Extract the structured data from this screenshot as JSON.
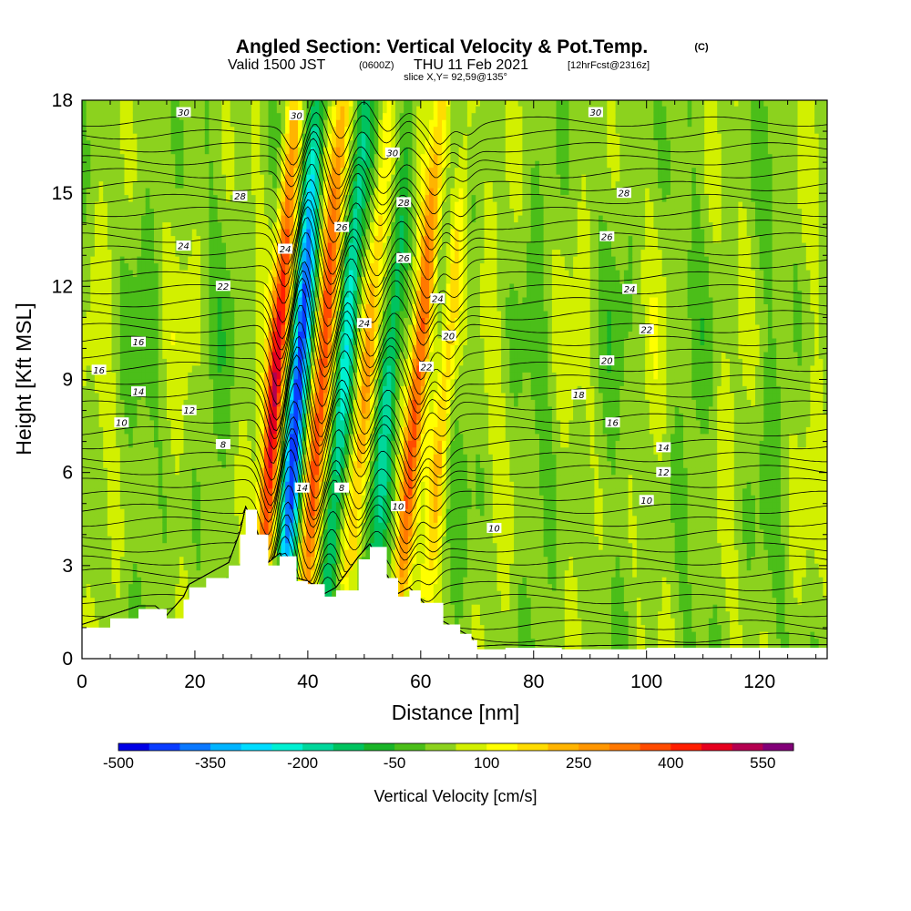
{
  "header": {
    "title": "Angled Section: Vertical Velocity & Pot.Temp.",
    "title_suffix": "(C)",
    "valid_prefix": "Valid 1500 JST",
    "valid_zulu": "(0600Z)",
    "valid_date": "THU 11 Feb 2021",
    "forecast_tag": "[12hrFcst@2316z]",
    "slice": "slice X,Y= 92,59@135°"
  },
  "colorbar": {
    "label": "Vertical Velocity [cm/s]",
    "tick_labels": [
      "-500",
      "-350",
      "-200",
      "-50",
      "100",
      "250",
      "400",
      "550"
    ],
    "tick_values": [
      -500,
      -350,
      -200,
      -50,
      100,
      250,
      400,
      550
    ],
    "levels": [
      -500,
      -450,
      -400,
      -350,
      -300,
      -250,
      -200,
      -150,
      -100,
      -50,
      0,
      50,
      100,
      150,
      200,
      250,
      300,
      350,
      400,
      450,
      500,
      550,
      600
    ],
    "colors": [
      "#0000e6",
      "#0a3cff",
      "#0a78ff",
      "#00b4ff",
      "#00dcff",
      "#00f0d2",
      "#00d79b",
      "#00c35f",
      "#19b428",
      "#4bbe19",
      "#8cd21e",
      "#d2f000",
      "#ffff00",
      "#ffdc00",
      "#ffb400",
      "#ff9600",
      "#ff7800",
      "#ff4b00",
      "#ff1e00",
      "#e6001e",
      "#b40050",
      "#820078"
    ]
  },
  "chart_data": {
    "type": "contour",
    "title": "Angled Section: Vertical Velocity & Pot.Temp. (C)",
    "subtitle": "Valid 1500 JST (0600Z) THU 11 Feb 2021 [12hrFcst@2316z]",
    "xlabel": "Distance [nm]",
    "ylabel": "Height [Kft MSL]",
    "xlim": [
      0,
      132
    ],
    "ylim": [
      0,
      18
    ],
    "x_ticks": [
      0,
      20,
      40,
      60,
      80,
      100,
      120
    ],
    "y_ticks": [
      0,
      3,
      6,
      9,
      12,
      15,
      18
    ],
    "filled_field": "Vertical Velocity [cm/s]",
    "contour_field": "Potential temperature (C)",
    "terrain_kft": {
      "x": [
        0,
        5,
        10,
        13,
        15,
        18,
        19,
        22,
        26,
        28,
        29,
        31,
        33,
        35,
        38,
        40,
        43,
        45,
        49,
        51,
        54,
        56,
        58,
        60,
        64,
        67,
        69,
        70,
        75,
        85,
        100,
        132
      ],
      "y": [
        1.0,
        1.3,
        1.6,
        1.6,
        1.3,
        1.9,
        2.3,
        2.6,
        3.0,
        4.0,
        4.8,
        4.0,
        3.0,
        3.3,
        2.5,
        2.4,
        2.0,
        2.2,
        3.2,
        3.6,
        2.6,
        2.0,
        2.2,
        1.8,
        1.1,
        0.8,
        0.6,
        0.3,
        0.35,
        0.3,
        0.35,
        0.35
      ]
    },
    "vertical_velocity_bands": [
      {
        "center_x": 34,
        "value": 450,
        "tilt_kft_per_nm": 0.7
      },
      {
        "center_x": 38,
        "value": -450,
        "tilt_kft_per_nm": 0.7
      },
      {
        "center_x": 42,
        "value": 380,
        "tilt_kft_per_nm": 0.75
      },
      {
        "center_x": 46,
        "value": -280,
        "tilt_kft_per_nm": 0.75
      },
      {
        "center_x": 50,
        "value": 230,
        "tilt_kft_per_nm": 0.8
      },
      {
        "center_x": 54,
        "value": -170,
        "tilt_kft_per_nm": 0.8
      },
      {
        "center_x": 59,
        "value": 330,
        "tilt_kft_per_nm": 0.85
      },
      {
        "center_x": 64,
        "value": 180,
        "tilt_kft_per_nm": 0.85
      }
    ],
    "theta_levels": [
      8,
      10,
      12,
      14,
      16,
      18,
      20,
      22,
      24,
      26,
      28,
      30
    ],
    "theta_label_samples": [
      {
        "x": 18,
        "y": 17.6,
        "label": "30"
      },
      {
        "x": 91,
        "y": 17.6,
        "label": "30"
      },
      {
        "x": 38,
        "y": 17.5,
        "label": "30"
      },
      {
        "x": 55,
        "y": 16.3,
        "label": "30"
      },
      {
        "x": 28,
        "y": 14.9,
        "label": "28"
      },
      {
        "x": 96,
        "y": 15.0,
        "label": "28"
      },
      {
        "x": 57,
        "y": 14.7,
        "label": "28"
      },
      {
        "x": 18,
        "y": 13.3,
        "label": "24"
      },
      {
        "x": 46,
        "y": 13.9,
        "label": "26"
      },
      {
        "x": 93,
        "y": 13.6,
        "label": "26"
      },
      {
        "x": 36,
        "y": 13.2,
        "label": "24"
      },
      {
        "x": 57,
        "y": 12.9,
        "label": "26"
      },
      {
        "x": 25,
        "y": 12.0,
        "label": "22"
      },
      {
        "x": 97,
        "y": 11.9,
        "label": "24"
      },
      {
        "x": 63,
        "y": 11.6,
        "label": "24"
      },
      {
        "x": 10,
        "y": 10.2,
        "label": "16"
      },
      {
        "x": 50,
        "y": 10.8,
        "label": "24"
      },
      {
        "x": 100,
        "y": 10.6,
        "label": "22"
      },
      {
        "x": 65,
        "y": 10.4,
        "label": "20"
      },
      {
        "x": 3,
        "y": 9.3,
        "label": "16"
      },
      {
        "x": 93,
        "y": 9.6,
        "label": "20"
      },
      {
        "x": 61,
        "y": 9.4,
        "label": "22"
      },
      {
        "x": 10,
        "y": 8.6,
        "label": "14"
      },
      {
        "x": 88,
        "y": 8.5,
        "label": "18"
      },
      {
        "x": 19,
        "y": 8.0,
        "label": "12"
      },
      {
        "x": 7,
        "y": 7.6,
        "label": "10"
      },
      {
        "x": 94,
        "y": 7.6,
        "label": "16"
      },
      {
        "x": 25,
        "y": 6.9,
        "label": "8"
      },
      {
        "x": 103,
        "y": 6.8,
        "label": "14"
      },
      {
        "x": 103,
        "y": 6.0,
        "label": "12"
      },
      {
        "x": 100,
        "y": 5.1,
        "label": "10"
      },
      {
        "x": 73,
        "y": 4.2,
        "label": "10"
      },
      {
        "x": 39,
        "y": 5.5,
        "label": "14"
      },
      {
        "x": 46,
        "y": 5.5,
        "label": "8"
      },
      {
        "x": 56,
        "y": 4.9,
        "label": "10"
      }
    ],
    "colorbar_ticks": [
      -500,
      -350,
      -200,
      -50,
      100,
      250,
      400,
      550
    ]
  }
}
